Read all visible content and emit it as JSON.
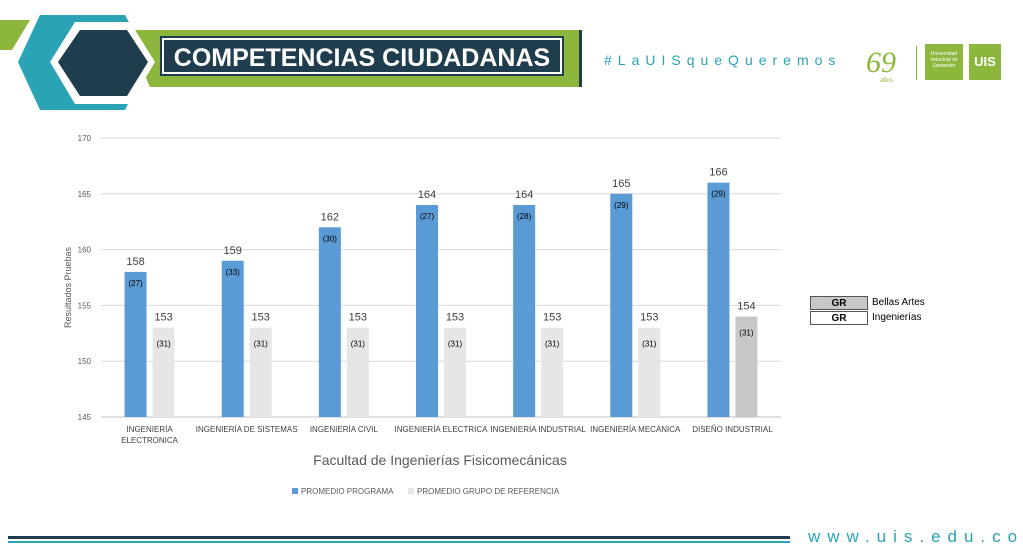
{
  "header": {
    "title": "COMPETENCIAS CIUDADANAS",
    "hashtag": "#LaUISqueQueremos",
    "anniversary_number": "69",
    "anniversary_label": "años",
    "university_name": "Universidad Industrial de Santander",
    "uis_logo": "UIS",
    "colors": {
      "dark": "#1f3d4c",
      "teal": "#2aa3b5",
      "green": "#8cb63c"
    }
  },
  "footer": {
    "website": "www.uis.edu.co"
  },
  "legend_side": {
    "rows": [
      {
        "code": "GR",
        "label": "Bellas Artes",
        "fill": "#c8c8c8"
      },
      {
        "code": "GR",
        "label": "Ingenierías",
        "fill": "#ffffff"
      }
    ]
  },
  "chart_data": {
    "type": "bar",
    "title": "",
    "xlabel": "Facultad de Ingenierías Fisicomecánicas",
    "ylabel": "Resultados Pruebas",
    "ylim": [
      145,
      170
    ],
    "yticks": [
      145,
      150,
      155,
      160,
      165,
      170
    ],
    "grid": true,
    "legend_position": "bottom",
    "categories": [
      [
        "INGENIERÍA",
        "ELECTRONICA"
      ],
      [
        "INGENIERÍA DE SISTEMAS"
      ],
      [
        "INGENIERÍA CIVIL"
      ],
      [
        "INGENIERÍA ELECTRICA"
      ],
      [
        "INGENIERÍA INDUSTRIAL"
      ],
      [
        "INGENIERÍA MECÁNICA"
      ],
      [
        "DISEÑO INDUSTRIAL"
      ]
    ],
    "series": [
      {
        "name": "PROMEDIO PROGRAMA",
        "color": "#5b9bd5",
        "values": [
          158,
          159,
          162,
          164,
          164,
          165,
          166
        ],
        "annotations": [
          "(27)",
          "(33)",
          "(30)",
          "(27)",
          "(28)",
          "(29)",
          "(29)"
        ]
      },
      {
        "name": "PROMEDIO GRUPO DE REFERENCIA",
        "color": "#e6e6e6",
        "highlight_color": "#c8c8c8",
        "highlight_index": 6,
        "values": [
          153,
          153,
          153,
          153,
          153,
          153,
          154
        ],
        "annotations": [
          "(31)",
          "(31)",
          "(31)",
          "(31)",
          "(31)",
          "(31)",
          "(31)"
        ]
      }
    ]
  }
}
